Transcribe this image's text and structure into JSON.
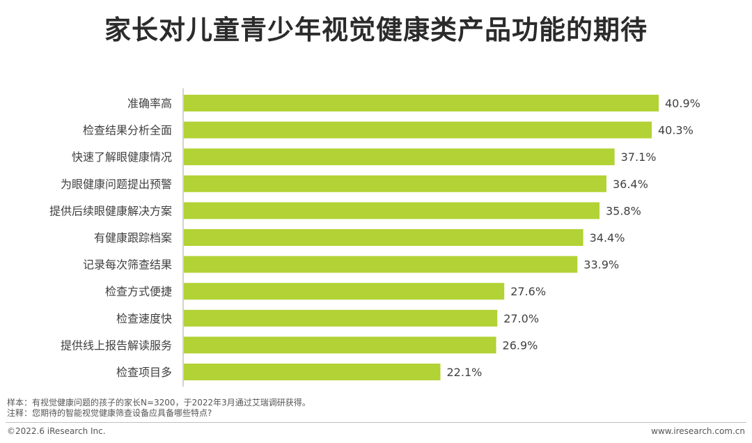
{
  "title": "家长对儿童青少年视觉健康类产品功能的期待",
  "notes": {
    "sample": "样本：有视觉健康问题的孩子的家长N=3200，于2022年3月通过艾瑞调研获得。",
    "remark": "注释：您期待的智能视觉健康筛查设备应具备哪些特点?"
  },
  "footer": {
    "copyright": "©2022.6 iResearch Inc.",
    "website": "www.iresearch.com.cn"
  },
  "colors": {
    "bar": "#b2d235",
    "axis": "#a6a6a6",
    "text": "#404040"
  },
  "chart_data": {
    "type": "bar",
    "orientation": "horizontal",
    "categories": [
      "准确率高",
      "检查结果分析全面",
      "快速了解眼健康情况",
      "为眼健康问题提出预警",
      "提供后续眼健康解决方案",
      "有健康跟踪档案",
      "记录每次筛查结果",
      "检查方式便捷",
      "检查速度快",
      "提供线上报告解读服务",
      "检查项目多"
    ],
    "values": [
      40.9,
      40.3,
      37.1,
      36.4,
      35.8,
      34.4,
      33.9,
      27.6,
      27.0,
      26.9,
      22.1
    ],
    "value_labels": [
      "40.9%",
      "40.3%",
      "37.1%",
      "36.4%",
      "35.8%",
      "34.4%",
      "33.9%",
      "27.6%",
      "27.0%",
      "26.9%",
      "22.1%"
    ],
    "unit": "%",
    "xlim": [
      0,
      40.9
    ],
    "grid": false,
    "legend": "none"
  }
}
